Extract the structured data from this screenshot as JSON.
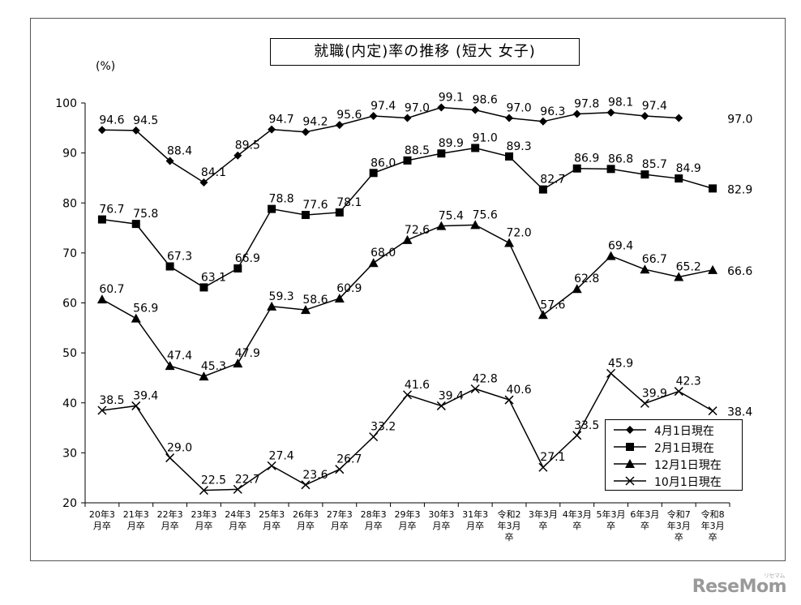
{
  "chart_data": {
    "type": "line",
    "title": "就職(内定)率の推移 (短大 女子)",
    "ylabel_unit": "(%)",
    "ylim": [
      20,
      100
    ],
    "y_ticks": [
      20,
      30,
      40,
      50,
      60,
      70,
      80,
      90,
      100
    ],
    "grid": false,
    "legend_position": "bottom-right",
    "categories": [
      [
        "20年3",
        "月卒"
      ],
      [
        "21年3",
        "月卒"
      ],
      [
        "22年3",
        "月卒"
      ],
      [
        "23年3",
        "月卒"
      ],
      [
        "24年3",
        "月卒"
      ],
      [
        "25年3",
        "月卒"
      ],
      [
        "26年3",
        "月卒"
      ],
      [
        "27年3",
        "月卒"
      ],
      [
        "28年3",
        "月卒"
      ],
      [
        "29年3",
        "月卒"
      ],
      [
        "30年3",
        "月卒"
      ],
      [
        "31年3",
        "月卒"
      ],
      [
        "令和2",
        "年3月",
        "卒"
      ],
      [
        "3年3月",
        "卒"
      ],
      [
        "4年3月",
        "卒"
      ],
      [
        "5年3月",
        "卒"
      ],
      [
        "6年3月",
        "卒"
      ],
      [
        "令和7",
        "年3月",
        "卒"
      ],
      [
        "令和8",
        "年3月",
        "卒"
      ]
    ],
    "series": [
      {
        "name": "4月1日現在",
        "marker": "diamond",
        "values": [
          94.6,
          94.5,
          88.4,
          84.1,
          89.5,
          94.7,
          94.2,
          95.6,
          97.4,
          97.0,
          99.1,
          98.6,
          97.0,
          96.3,
          97.8,
          98.1,
          97.4,
          97.0,
          null
        ],
        "labels": [
          "94.6",
          "94.5",
          "88.4",
          "84.1",
          "89.5",
          "94.7",
          "94.2",
          "95.6",
          "97.4",
          "97.0",
          "99.1",
          "98.6",
          "97.0",
          "96.3",
          "97.8",
          "98.1",
          "97.4",
          "97.0",
          null
        ]
      },
      {
        "name": "2月1日現在",
        "marker": "square",
        "values": [
          76.7,
          75.8,
          67.3,
          63.1,
          66.9,
          78.8,
          77.6,
          78.1,
          86.0,
          88.5,
          89.9,
          91.0,
          89.3,
          82.7,
          86.9,
          86.8,
          85.7,
          84.9,
          82.9
        ],
        "labels": [
          "76.7",
          "75.8",
          "67.3",
          "63.1",
          "66.9",
          "78.8",
          "77.6",
          "78.1",
          "86.0",
          "88.5",
          "89.9",
          "91.0",
          "89.3",
          "82.7",
          "86.9",
          "86.8",
          "85.7",
          "84.9",
          "82.9"
        ]
      },
      {
        "name": "12月1日現在",
        "marker": "triangle",
        "values": [
          60.7,
          56.9,
          47.4,
          45.3,
          47.9,
          59.3,
          58.6,
          60.9,
          68.0,
          72.6,
          75.4,
          75.6,
          72.0,
          57.6,
          62.8,
          69.4,
          66.7,
          65.2,
          66.6
        ],
        "labels": [
          "60.7",
          "56.9",
          "47.4",
          "45.3",
          "47.9",
          "59.3",
          "58.6",
          "60.9",
          "68.0",
          "72.6",
          "75.4",
          "75.6",
          "72.0",
          "57.6",
          "62.8",
          "69.4",
          "66.7",
          "65.2",
          "66.6"
        ]
      },
      {
        "name": "10月1日現在",
        "marker": "x",
        "values": [
          38.5,
          39.4,
          29.0,
          22.5,
          22.7,
          27.4,
          23.6,
          26.7,
          33.2,
          41.6,
          39.4,
          42.8,
          40.6,
          27.1,
          33.5,
          45.9,
          39.9,
          42.3,
          38.4
        ],
        "labels": [
          "38.5",
          "39.4",
          "29.0",
          "22.5",
          "22.7",
          "27.4",
          "23.6",
          "26.7",
          "33.2",
          "41.6",
          "39.4",
          "42.8",
          "40.6",
          "27.1",
          "33.5",
          "45.9",
          "39.9",
          "42.3",
          "38.4"
        ]
      }
    ]
  },
  "watermark": "ReseMom",
  "watermark_sub": "リセマム"
}
